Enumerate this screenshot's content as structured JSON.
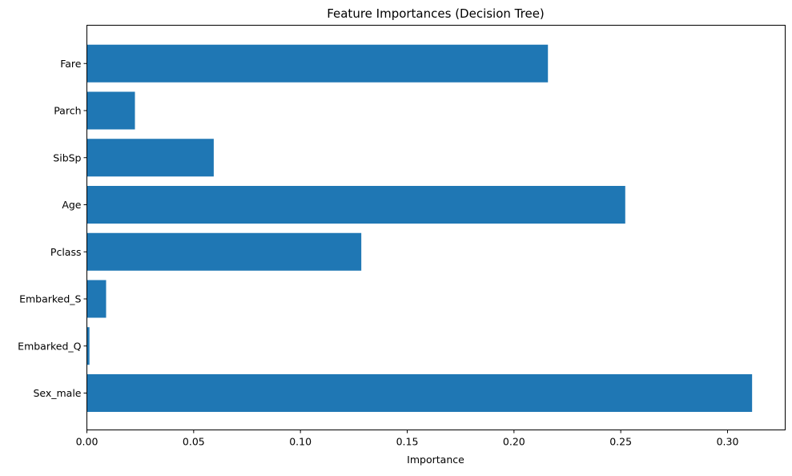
{
  "chart_data": {
    "type": "bar",
    "orientation": "horizontal",
    "title": "Feature Importances (Decision Tree)",
    "xlabel": "Importance",
    "ylabel": "",
    "categories": [
      "Sex_male",
      "Embarked_Q",
      "Embarked_S",
      "Pclass",
      "Age",
      "SibSp",
      "Parch",
      "Fare"
    ],
    "values": [
      0.3115,
      0.0012,
      0.009,
      0.1285,
      0.2521,
      0.0594,
      0.0225,
      0.2159
    ],
    "xlim": [
      0,
      0.327
    ],
    "xticks": [
      0.0,
      0.05,
      0.1,
      0.15,
      0.2,
      0.25,
      0.3
    ],
    "xtick_labels": [
      "0.00",
      "0.05",
      "0.10",
      "0.15",
      "0.20",
      "0.25",
      "0.30"
    ],
    "bar_color": "#1f77b4",
    "grid": false,
    "legend": "none"
  }
}
